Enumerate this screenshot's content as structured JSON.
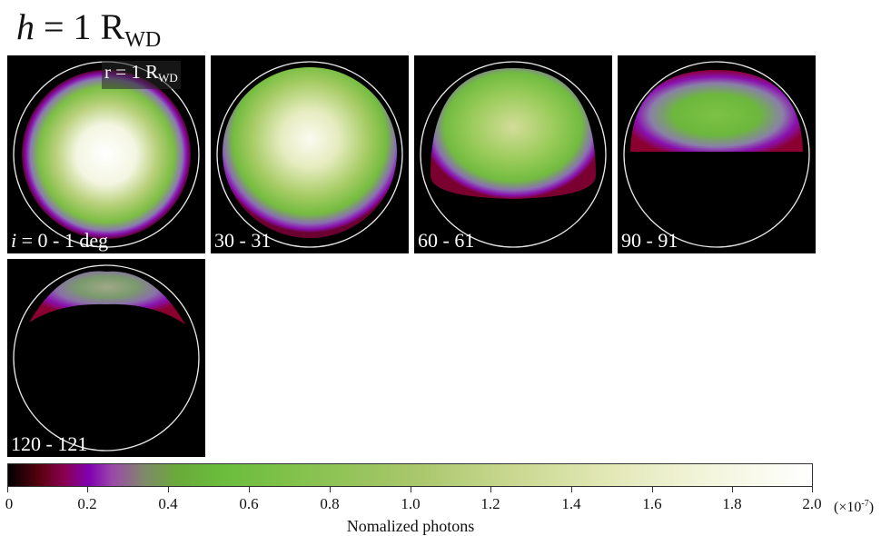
{
  "title": {
    "var": "h",
    "eq": " = 1 R",
    "sub": "WD"
  },
  "radius_label": {
    "text": "r = 1 R",
    "sub": "WD"
  },
  "panels": [
    {
      "var": "i",
      "eq": " = ",
      "label": "0 - 1 deg"
    },
    {
      "label": "30 - 31"
    },
    {
      "label": "60 - 61"
    },
    {
      "label": "90 - 91"
    },
    {
      "label": "120 - 121"
    }
  ],
  "colorbar": {
    "ticks": [
      "0",
      "0.2",
      "0.4",
      "0.6",
      "0.8",
      "1.0",
      "1.2",
      "1.4",
      "1.6",
      "1.8",
      "2.0"
    ],
    "exponent_prefix": "(×10",
    "exponent_power": "-7",
    "exponent_suffix": ")",
    "label": "Nomalized photons",
    "range": [
      0,
      2.0
    ],
    "colors": [
      "#000000",
      "#8a0050",
      "#8000b0",
      "#6aaa3a",
      "#a8c66a",
      "#ffffff"
    ]
  }
}
